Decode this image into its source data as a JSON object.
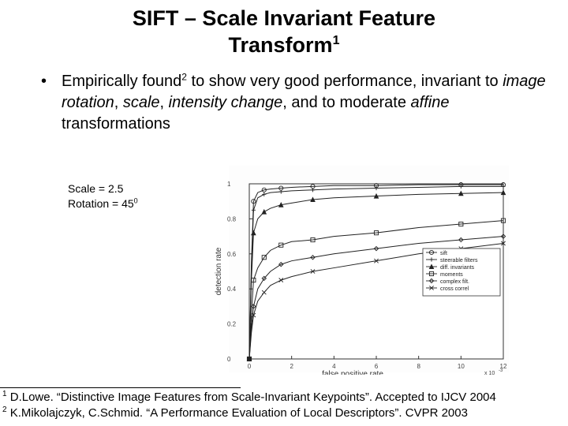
{
  "slide": {
    "title_line1": "SIFT – Scale Invariant Feature",
    "title_line2": "Transform",
    "title_sup": "1",
    "bullet": {
      "marker": "•",
      "seg1": "Empirically found",
      "sup": "2",
      "seg2": " to show very good performance, invariant to ",
      "em1": "image rotation",
      "seg3": ", ",
      "em2": "scale",
      "seg4": ", ",
      "em3": "intensity change",
      "seg5": ", and to moderate ",
      "em4": "affine",
      "seg6": " transformations"
    },
    "params": {
      "scale": "Scale = 2.5",
      "rotation": "Rotation = 45",
      "rotation_sup": "0"
    },
    "footnotes": [
      {
        "num": "1",
        "text": " D.Lowe. “Distinctive Image Features from Scale-Invariant Keypoints”. Accepted to IJCV 2004"
      },
      {
        "num": "2",
        "text": " K.Mikolajczyk, C.Schmid. “A Performance Evaluation of Local Descriptors”. CVPR 2003"
      }
    ]
  },
  "chart_data": {
    "type": "line",
    "xlabel": "false positive rate",
    "ylabel": "detection rate",
    "xlim": [
      0,
      12
    ],
    "ylim": [
      0,
      1
    ],
    "x_ticks": [
      "0",
      "2",
      "4",
      "6",
      "8",
      "10",
      "12"
    ],
    "y_ticks": [
      "0",
      "0.2",
      "0.4",
      "0.6",
      "0.8",
      "1"
    ],
    "x_multiplier": "x 10",
    "x_multiplier_exp": "-3",
    "grid": false,
    "legend_position": "right",
    "series": [
      {
        "name": "sift",
        "marker": "circle",
        "x": [
          0,
          0.1,
          0.2,
          0.4,
          0.7,
          1.0,
          1.5,
          2.0,
          3.0,
          4.0,
          6.0,
          8.0,
          10.0,
          12.0
        ],
        "y": [
          0,
          0.55,
          0.9,
          0.95,
          0.965,
          0.97,
          0.975,
          0.98,
          0.985,
          0.99,
          0.99,
          0.995,
          0.995,
          0.995
        ]
      },
      {
        "name": "steerable filters",
        "marker": "plus",
        "x": [
          0,
          0.1,
          0.2,
          0.4,
          0.7,
          1.0,
          1.5,
          2.0,
          3.0,
          4.0,
          6.0,
          8.0,
          10.0,
          12.0
        ],
        "y": [
          0,
          0.5,
          0.85,
          0.92,
          0.94,
          0.95,
          0.955,
          0.96,
          0.965,
          0.97,
          0.975,
          0.98,
          0.985,
          0.985
        ]
      },
      {
        "name": "diff. invariants",
        "marker": "triangle",
        "x": [
          0,
          0.1,
          0.2,
          0.4,
          0.7,
          1.0,
          1.5,
          2.0,
          3.0,
          4.0,
          6.0,
          8.0,
          10.0,
          12.0
        ],
        "y": [
          0,
          0.45,
          0.72,
          0.8,
          0.84,
          0.86,
          0.88,
          0.89,
          0.91,
          0.92,
          0.93,
          0.94,
          0.945,
          0.95
        ]
      },
      {
        "name": "moments",
        "marker": "square",
        "x": [
          0,
          0.1,
          0.2,
          0.4,
          0.7,
          1.0,
          1.5,
          2.0,
          3.0,
          4.0,
          6.0,
          8.0,
          10.0,
          12.0
        ],
        "y": [
          0,
          0.25,
          0.45,
          0.52,
          0.58,
          0.62,
          0.65,
          0.67,
          0.68,
          0.7,
          0.72,
          0.75,
          0.77,
          0.79
        ]
      },
      {
        "name": "complex filt.",
        "marker": "diamond",
        "x": [
          0,
          0.1,
          0.2,
          0.4,
          0.7,
          1.0,
          1.5,
          2.0,
          3.0,
          4.0,
          6.0,
          8.0,
          10.0,
          12.0
        ],
        "y": [
          0,
          0.18,
          0.3,
          0.4,
          0.46,
          0.5,
          0.54,
          0.56,
          0.58,
          0.6,
          0.63,
          0.66,
          0.68,
          0.7
        ]
      },
      {
        "name": "cross correl",
        "marker": "x",
        "x": [
          0,
          0.1,
          0.2,
          0.4,
          0.7,
          1.0,
          1.5,
          2.0,
          3.0,
          4.0,
          6.0,
          8.0,
          10.0,
          12.0
        ],
        "y": [
          0,
          0.15,
          0.25,
          0.33,
          0.38,
          0.42,
          0.45,
          0.47,
          0.5,
          0.52,
          0.56,
          0.6,
          0.63,
          0.66
        ]
      }
    ]
  }
}
